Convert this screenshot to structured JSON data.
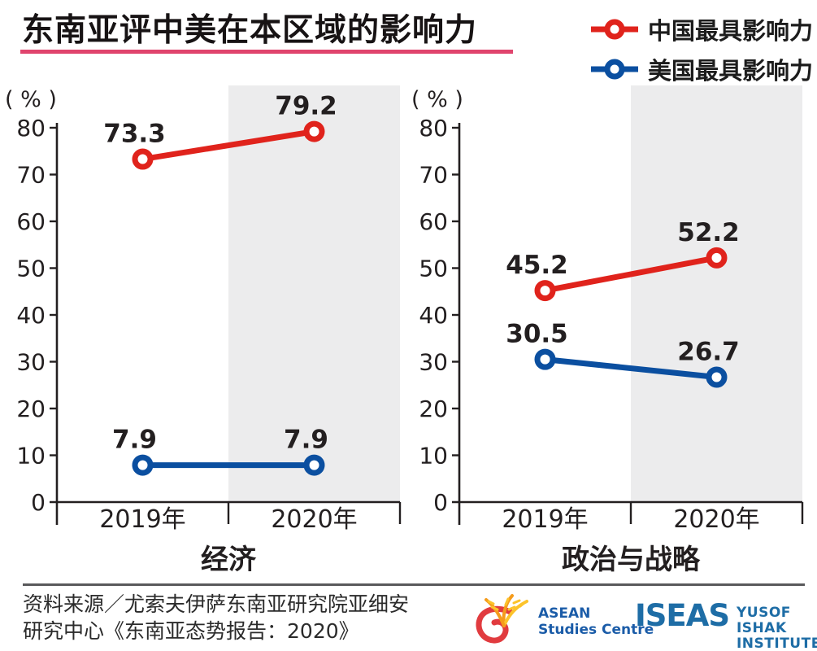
{
  "header": {
    "title": "东南亚评中美在本区域的影响力",
    "underline_color": "#e0446d",
    "legend": [
      {
        "label": "中国最具影响力",
        "color": "#e0231c"
      },
      {
        "label": "美国最具影响力",
        "color": "#0b4fa0"
      }
    ]
  },
  "chart_data": [
    {
      "type": "line",
      "title": "经济",
      "categories": [
        "2019年",
        "2020年"
      ],
      "series": [
        {
          "name": "中国最具影响力",
          "color": "#e0231c",
          "values": [
            73.3,
            79.2
          ]
        },
        {
          "name": "美国最具影响力",
          "color": "#0b4fa0",
          "values": [
            7.9,
            7.9
          ]
        }
      ],
      "ylabel": "( % )",
      "ylim": [
        0,
        80
      ],
      "ytick_step": 10,
      "grid": false,
      "highlight_category": "2020年",
      "highlight_color": "#ececed"
    },
    {
      "type": "line",
      "title": "政治与战略",
      "categories": [
        "2019年",
        "2020年"
      ],
      "series": [
        {
          "name": "中国最具影响力",
          "color": "#e0231c",
          "values": [
            45.2,
            52.2
          ]
        },
        {
          "name": "美国最具影响力",
          "color": "#0b4fa0",
          "values": [
            30.5,
            26.7
          ]
        }
      ],
      "ylabel": "( % )",
      "ylim": [
        0,
        80
      ],
      "ytick_step": 10,
      "grid": false,
      "highlight_category": "2020年",
      "highlight_color": "#ececed"
    }
  ],
  "footer": {
    "source_line1": "资料来源／尤索夫伊萨东南亚研究院亚细安",
    "source_line2": "研究中心《东南亚态势报告：2020》",
    "logos": {
      "asean": {
        "line1": "ASEAN",
        "line2": "Studies Centre",
        "text_color": "#1b5ca8",
        "swirl_red": "#e13b3f",
        "stalk_orange": "#f59c1c",
        "stalk_yellow": "#fcc32b"
      },
      "iseas": {
        "wordmark": "ISEAS",
        "line1": "YUSOF ISHAK",
        "line2": "INSTITUTE",
        "color": "#1e6da6"
      }
    }
  }
}
